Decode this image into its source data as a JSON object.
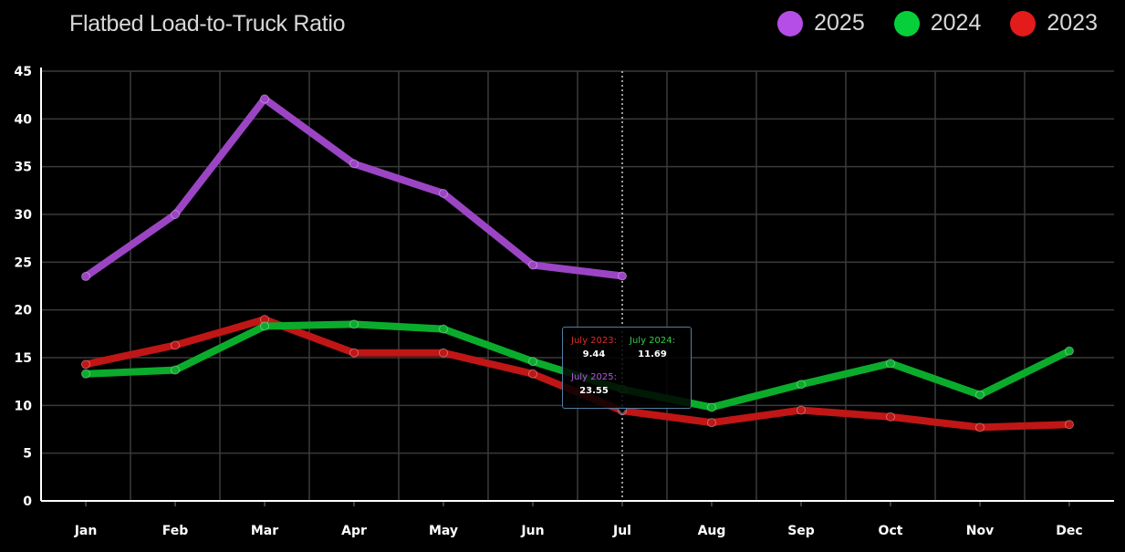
{
  "colors": {
    "y2025": "#9b45c4",
    "y2024": "#0bac2c",
    "y2023": "#c01616",
    "legend_2025": "#b54ee6",
    "legend_2024": "#06cf3a",
    "legend_2023": "#e31b1b",
    "grid": "#3a3a3a",
    "axis": "#ffffff",
    "crosshair": "#cfcfcf"
  },
  "chart_data": {
    "type": "line",
    "title": "Flatbed Load-to-Truck Ratio",
    "xlabel": "",
    "ylabel": "",
    "categories": [
      "Jan",
      "Feb",
      "Mar",
      "Apr",
      "May",
      "Jun",
      "Jul",
      "Aug",
      "Sep",
      "Oct",
      "Nov",
      "Dec"
    ],
    "ylim": [
      0,
      45
    ],
    "yticks": [
      0,
      5,
      10,
      15,
      20,
      25,
      30,
      35,
      40,
      45
    ],
    "grid": true,
    "legend_position": "top-right",
    "series": [
      {
        "name": "2023",
        "values": [
          14.3,
          16.3,
          19.0,
          15.5,
          15.5,
          13.3,
          9.44,
          8.2,
          9.5,
          8.8,
          7.7,
          8.0
        ]
      },
      {
        "name": "2024",
        "values": [
          13.3,
          13.7,
          18.3,
          18.5,
          18.0,
          14.6,
          11.69,
          9.8,
          12.2,
          14.4,
          11.1,
          15.7
        ]
      },
      {
        "name": "2025",
        "values": [
          23.5,
          30.0,
          42.1,
          35.3,
          32.2,
          24.7,
          23.55,
          null,
          null,
          null,
          null,
          null
        ]
      }
    ]
  },
  "legend": [
    {
      "label": "2025",
      "color": "#b54ee6"
    },
    {
      "label": "2024",
      "color": "#06cf3a"
    },
    {
      "label": "2023",
      "color": "#e31b1b"
    }
  ],
  "tooltip": {
    "month": "Jul",
    "entries": [
      {
        "label": "July 2023:",
        "value": "9.44",
        "color": "#e02a2a"
      },
      {
        "label": "July 2024:",
        "value": "11.69",
        "color": "#2fd047"
      },
      {
        "label": "July 2025:",
        "value": "23.55",
        "color": "#b458e0"
      }
    ]
  }
}
